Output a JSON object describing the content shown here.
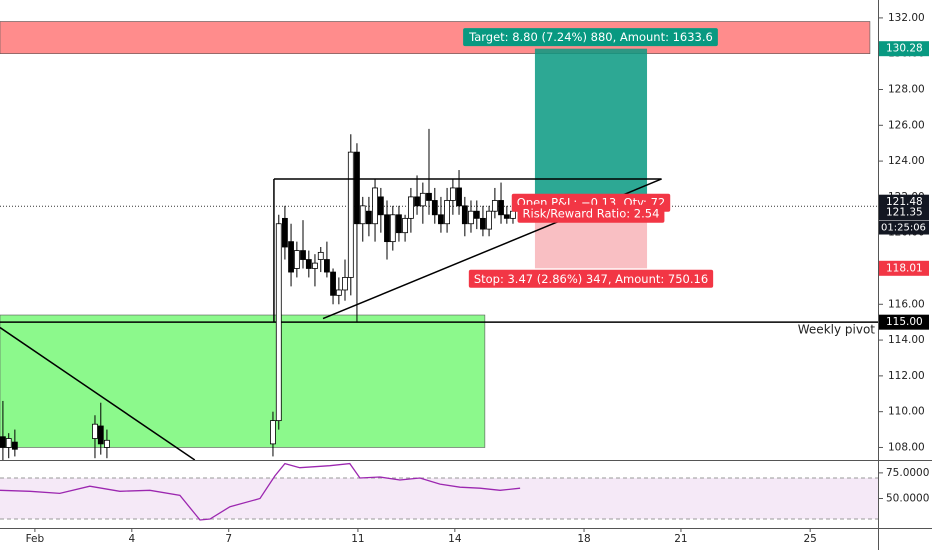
{
  "chart_data": {
    "type": "candlestick",
    "xlim": [
      -0.08,
      27.1
    ],
    "xticks": [
      {
        "value": 1,
        "label": "Feb"
      },
      4,
      7,
      11,
      14,
      18,
      21,
      25
    ],
    "ylim": [
      107.3,
      133
    ],
    "yticks": [
      {
        "value": 108,
        "label": "108.00"
      },
      {
        "value": 110,
        "label": "110.00"
      },
      {
        "value": 112,
        "label": "112.00"
      },
      {
        "value": 114,
        "label": "114.00"
      },
      {
        "value": 116,
        "label": "116.00"
      },
      {
        "value": 118,
        "label": "118.00"
      },
      {
        "value": 120,
        "label": "120.00"
      },
      {
        "value": 122,
        "label": "122.00"
      },
      {
        "value": 124,
        "label": "124.00"
      },
      {
        "value": 126,
        "label": "126.00"
      },
      {
        "value": 128,
        "label": "128.00"
      },
      {
        "value": 130,
        "label": "130.00"
      },
      {
        "value": 132,
        "label": "132.00"
      }
    ],
    "up_color": "#ffffff",
    "down_color": "#000000",
    "x": [
      0.01,
      0.19,
      0.38,
      2.86,
      3.04,
      3.23,
      8.37,
      8.55,
      8.74,
      8.93,
      9.11,
      9.3,
      9.48,
      9.67,
      9.85,
      10.04,
      10.23,
      10.41,
      10.6,
      10.78,
      10.97,
      11.15,
      11.34,
      11.53,
      11.71,
      11.9,
      12.08,
      12.27,
      12.46,
      12.64,
      12.83,
      13.01,
      13.2,
      13.38,
      13.57,
      13.76,
      13.94,
      14.13,
      14.31,
      14.5,
      14.68,
      14.87,
      15.06,
      15.24,
      15.43,
      15.61,
      15.8,
      15.99
    ],
    "open": [
      108.6,
      108.0,
      108.3,
      108.5,
      109.2,
      108.0,
      108.2,
      109.5,
      120.8,
      119.5,
      118.0,
      119.0,
      118.5,
      118.0,
      118.5,
      118.5,
      117.8,
      116.5,
      116.8,
      117.5,
      124.5,
      120.5,
      121.2,
      120.5,
      122.0,
      121.0,
      119.5,
      121.0,
      120.0,
      120.8,
      122.0,
      121.5,
      122.2,
      121.8,
      121.0,
      120.5,
      121.8,
      122.5,
      121.5,
      120.5,
      121.2,
      120.8,
      120.2,
      121.2,
      121.8,
      121.0,
      120.8,
      121.2
    ],
    "high": [
      110.6,
      108.8,
      109.0,
      109.8,
      110.5,
      109.0,
      110.0,
      121.0,
      121.5,
      120.5,
      119.5,
      120.7,
      119.0,
      118.8,
      119.2,
      119.5,
      118.0,
      117.5,
      118.5,
      125.5,
      125.0,
      122.0,
      122.0,
      123.0,
      122.5,
      121.8,
      121.5,
      121.5,
      121.0,
      122.5,
      123.2,
      122.8,
      125.8,
      122.5,
      122.0,
      122.5,
      123.0,
      123.5,
      122.0,
      121.8,
      121.8,
      121.5,
      121.5,
      122.5,
      122.8,
      121.5,
      121.5,
      121.8
    ],
    "low": [
      107.3,
      107.4,
      107.5,
      107.4,
      107.6,
      107.4,
      107.5,
      109.0,
      118.5,
      117.0,
      117.5,
      118.0,
      117.5,
      117.0,
      117.8,
      117.5,
      116.0,
      116.0,
      116.2,
      116.5,
      115.0,
      119.5,
      119.8,
      119.5,
      120.0,
      118.5,
      119.0,
      119.5,
      119.5,
      120.0,
      121.0,
      120.5,
      121.0,
      120.5,
      120.0,
      120.0,
      121.0,
      121.0,
      119.8,
      120.0,
      120.2,
      119.8,
      119.8,
      120.8,
      120.5,
      120.5,
      120.5,
      121.0
    ],
    "close": [
      108.0,
      108.5,
      107.9,
      109.3,
      108.2,
      108.4,
      109.5,
      120.5,
      119.2,
      117.8,
      119.0,
      118.5,
      118.0,
      118.3,
      118.9,
      117.8,
      116.5,
      116.8,
      117.5,
      124.5,
      120.5,
      121.5,
      120.5,
      122.5,
      121.0,
      119.5,
      121.0,
      120.0,
      120.8,
      122.0,
      121.5,
      122.2,
      121.8,
      121.0,
      120.5,
      121.8,
      122.5,
      121.5,
      120.5,
      121.2,
      120.8,
      120.2,
      121.2,
      121.8,
      121.0,
      120.8,
      121.2,
      121.5
    ],
    "zones": [
      {
        "x": [
          -0.08,
          26.85
        ],
        "y": [
          130.0,
          131.8
        ],
        "color": "#ff8c8c"
      },
      {
        "x": [
          -0.08,
          14.93
        ],
        "y": [
          108.0,
          115.4
        ],
        "color": "#8cf98c"
      }
    ],
    "lines": [
      {
        "x": [
          8.4,
          20.4
        ],
        "y": [
          123.0,
          123.0
        ]
      },
      {
        "x": [
          9.92,
          20.4
        ],
        "y": [
          115.2,
          123.0
        ]
      },
      {
        "x": [
          8.4,
          8.4
        ],
        "y": [
          123.0,
          115.0
        ]
      },
      {
        "x": [
          -0.08,
          5.95
        ],
        "y": [
          114.7,
          107.3
        ]
      }
    ],
    "pivot": {
      "name": "Weekly pivot",
      "value": 115,
      "value_label": "115.00"
    },
    "last_price": 121.48,
    "bid_price": 121.35,
    "countdown": "01:25:06",
    "position": {
      "x": [
        16.48,
        19.95
      ],
      "entry": 121.48,
      "target": 130.28,
      "stop": 118.01,
      "target_color": "#089981",
      "stop_color": "#f23645",
      "target_text": "Target: 8.80 (7.24%) 880, Amount: 1633.6",
      "pnl_text": "Open P&L: −0.13, Qty: 72",
      "rr_text": "Risk/Reward Ratio: 2.54",
      "stop_text": "Stop: 3.47 (2.86%) 347, Amount: 750.16"
    },
    "rsi": {
      "ylim": [
        22.2,
        85.6
      ],
      "yticks": [
        {
          "value": 75,
          "label": "75.0000"
        },
        {
          "value": 50,
          "label": "50.0000"
        }
      ],
      "bands": [
        30,
        70
      ],
      "color": "#9c27b0",
      "x": [
        -0.08,
        0.85,
        1.77,
        2.7,
        3.63,
        4.56,
        5.49,
        6.11,
        6.42,
        7.04,
        7.97,
        8.43,
        8.74,
        9.2,
        10.13,
        10.75,
        11.06,
        11.68,
        12.3,
        12.92,
        13.54,
        14.16,
        14.78,
        15.4,
        16.02
      ],
      "values": [
        58,
        57,
        55,
        62,
        57,
        58,
        53,
        29,
        30,
        42,
        50,
        72,
        84,
        80,
        82,
        84,
        70,
        71,
        68,
        70,
        64,
        61,
        60,
        58,
        60
      ]
    }
  }
}
